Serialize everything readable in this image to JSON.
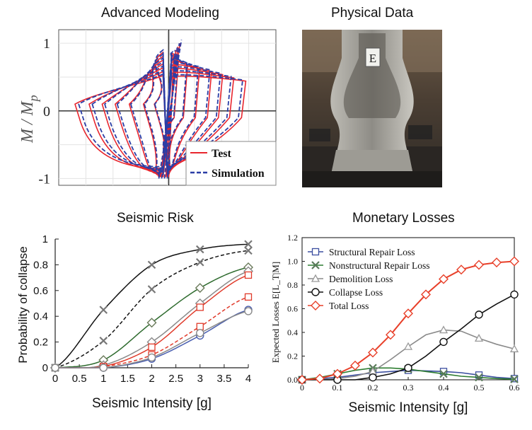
{
  "panels": {
    "modeling_title": "Advanced Modeling",
    "physical_title": "Physical Data",
    "risk_title": "Seismic Risk",
    "losses_title": "Monetary Losses"
  },
  "photo": {
    "label": "E"
  },
  "colors": {
    "test": "#e8262e",
    "simulation": "#2b3ea6",
    "risk_black": "#111111",
    "risk_green": "#2e6b2e",
    "risk_red": "#e03a2a",
    "risk_blue": "#4a5fb0",
    "structural": "#3c4fa0",
    "nonstructural": "#2e7d32",
    "demolition": "#8a8a8a",
    "collapse": "#111111",
    "total": "#e8402a"
  },
  "chart_data": [
    {
      "type": "line",
      "title": "Advanced Modeling",
      "xlabel": "",
      "ylabel": "M / M_p",
      "yticks": [
        "1",
        "0",
        "-1"
      ],
      "ylim": [
        -1.1,
        1.2
      ],
      "xlim": [
        -1,
        1
      ],
      "grid": true,
      "legend": "bottom-right",
      "series": [
        {
          "name": "Test",
          "style": "solid"
        },
        {
          "name": "Simulation",
          "style": "dashed"
        }
      ]
    },
    {
      "type": "line",
      "title": "Seismic Risk",
      "xlabel": "Seismic Intensity [g]",
      "ylabel": "Probability of collapse",
      "xticks": [
        "0",
        "0.5",
        "1",
        "1.5",
        "2",
        "2.5",
        "3",
        "3.5",
        "4"
      ],
      "yticks": [
        "0",
        "0.2",
        "0.4",
        "0.6",
        "0.8",
        "1"
      ],
      "xlim": [
        0,
        4
      ],
      "ylim": [
        0,
        1
      ],
      "series": [
        {
          "marker": "x",
          "color": "black",
          "style": "solid",
          "x": [
            0,
            1,
            2,
            3,
            4
          ],
          "y": [
            0,
            0.45,
            0.8,
            0.92,
            0.96
          ]
        },
        {
          "marker": "x",
          "color": "black",
          "style": "dashed",
          "x": [
            0,
            1,
            2,
            3,
            4
          ],
          "y": [
            0,
            0.21,
            0.61,
            0.82,
            0.91
          ]
        },
        {
          "marker": "diamond",
          "color": "green",
          "style": "solid",
          "x": [
            0,
            1,
            2,
            3,
            4
          ],
          "y": [
            0,
            0.06,
            0.35,
            0.62,
            0.78
          ]
        },
        {
          "marker": "diamond",
          "color": "gray",
          "style": "solid",
          "x": [
            0,
            1,
            2,
            3,
            4
          ],
          "y": [
            0,
            0.02,
            0.2,
            0.5,
            0.75
          ]
        },
        {
          "marker": "square",
          "color": "red",
          "style": "solid",
          "x": [
            0,
            1,
            2,
            3,
            4
          ],
          "y": [
            0,
            0.01,
            0.16,
            0.47,
            0.72
          ]
        },
        {
          "marker": "square",
          "color": "red",
          "style": "dashed",
          "x": [
            0,
            1,
            2,
            3,
            4
          ],
          "y": [
            0,
            0.01,
            0.1,
            0.32,
            0.55
          ]
        },
        {
          "marker": "circle",
          "color": "blue",
          "style": "solid",
          "x": [
            0,
            1,
            2,
            3,
            4
          ],
          "y": [
            0,
            0.0,
            0.07,
            0.25,
            0.45
          ]
        },
        {
          "marker": "circle",
          "color": "gray",
          "style": "solid",
          "x": [
            0,
            1,
            2,
            3,
            4
          ],
          "y": [
            0,
            0.0,
            0.08,
            0.27,
            0.44
          ]
        }
      ]
    },
    {
      "type": "line",
      "title": "Monetary Losses",
      "xlabel": "Seismic Intensity [g]",
      "ylabel": "Expected Losses E[L_T|M]",
      "xticks": [
        "0",
        "0.1",
        "0.2",
        "0.3",
        "0.4",
        "0.5",
        "0.6"
      ],
      "yticks": [
        "0.0",
        "0.2",
        "0.4",
        "0.6",
        "0.8",
        "1.0",
        "1.2"
      ],
      "xlim": [
        0,
        0.6
      ],
      "ylim": [
        0,
        1.2
      ],
      "legend": "top-left",
      "x": [
        0,
        0.05,
        0.1,
        0.15,
        0.2,
        0.25,
        0.3,
        0.35,
        0.4,
        0.45,
        0.5,
        0.55,
        0.6
      ],
      "series": [
        {
          "name": "Structural Repair Loss",
          "marker": "square",
          "y": [
            0,
            0.01,
            0.02,
            0.04,
            0.06,
            0.07,
            0.08,
            0.075,
            0.07,
            0.06,
            0.04,
            0.02,
            0.01
          ]
        },
        {
          "name": "Nonstructural Repair Loss",
          "marker": "x",
          "y": [
            0,
            0.02,
            0.05,
            0.08,
            0.1,
            0.1,
            0.09,
            0.07,
            0.05,
            0.03,
            0.02,
            0.01,
            0.005
          ]
        },
        {
          "name": "Demolition Loss",
          "marker": "triangle",
          "y": [
            0,
            0.0,
            0.01,
            0.03,
            0.07,
            0.17,
            0.28,
            0.38,
            0.42,
            0.41,
            0.35,
            0.3,
            0.26
          ]
        },
        {
          "name": "Collapse Loss",
          "marker": "circle",
          "y": [
            0,
            0,
            0,
            0,
            0.02,
            0.05,
            0.1,
            0.2,
            0.32,
            0.43,
            0.55,
            0.64,
            0.72
          ]
        },
        {
          "name": "Total Loss",
          "marker": "diamond",
          "y": [
            0,
            0.01,
            0.05,
            0.12,
            0.23,
            0.38,
            0.56,
            0.72,
            0.85,
            0.93,
            0.97,
            0.99,
            1.0
          ]
        }
      ]
    }
  ]
}
